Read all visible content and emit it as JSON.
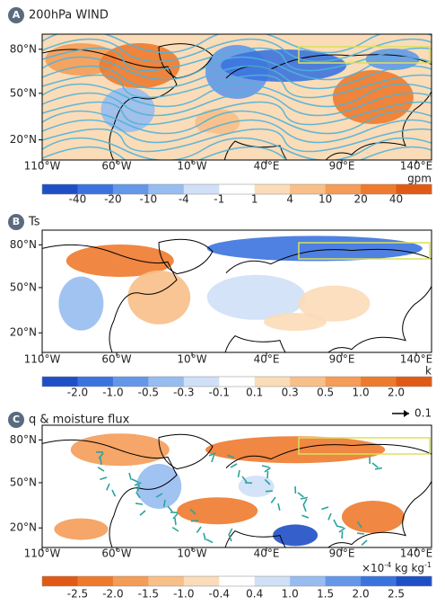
{
  "panels": [
    {
      "letter": "A",
      "title": "200hPa WIND",
      "lat_ticks": [
        "80°N",
        "50°N",
        "20°N"
      ],
      "lon_ticks": [
        "110°W",
        "60°W",
        "10°W",
        "40°E",
        "90°E",
        "140°E"
      ],
      "colorbar": {
        "labels": [
          "-40",
          "-20",
          "-10",
          "-4",
          "-1",
          "1",
          "4",
          "10",
          "20",
          "40"
        ],
        "unit": "gpm",
        "colors": [
          "#1f4fc7",
          "#3b73de",
          "#6497e8",
          "#97bdf0",
          "#cfe0f7",
          "#ffffff",
          "#fbdcb8",
          "#f8bf88",
          "#f49c58",
          "#ee7a2d",
          "#e05a15"
        ]
      }
    },
    {
      "letter": "B",
      "title": "Ts",
      "lat_ticks": [
        "80°N",
        "50°N",
        "20°N"
      ],
      "lon_ticks": [
        "110°W",
        "60°W",
        "10°W",
        "40°E",
        "90°E",
        "140°E"
      ],
      "colorbar": {
        "labels": [
          "-2.0",
          "-1.0",
          "-0.5",
          "-0.3",
          "-0.1",
          "0.1",
          "0.3",
          "0.5",
          "1.0",
          "2.0"
        ],
        "unit": "k",
        "colors": [
          "#1f4fc7",
          "#3b73de",
          "#6497e8",
          "#97bdf0",
          "#cfe0f7",
          "#ffffff",
          "#fbdcb8",
          "#f8bf88",
          "#f49c58",
          "#ee7a2d",
          "#e05a15"
        ]
      }
    },
    {
      "letter": "C",
      "title": "q & moisture flux",
      "reference_vector": "0.1",
      "lat_ticks": [
        "80°N",
        "50°N",
        "20°N"
      ],
      "lon_ticks": [
        "110°W",
        "60°W",
        "10°W",
        "40°E",
        "90°E",
        "140°E"
      ],
      "colorbar": {
        "labels": [
          "-2.5",
          "-2.0",
          "-1.5",
          "-1.0",
          "-0.4",
          "0.4",
          "1.0",
          "1.5",
          "2.0",
          "2.5"
        ],
        "unit": {
          "base": "×10",
          "exp": "-4",
          "rest": " kg kg",
          "exp2": "-1"
        },
        "colors": [
          "#e05a15",
          "#ee7a2d",
          "#f49c58",
          "#f8bf88",
          "#fbdcb8",
          "#ffffff",
          "#cfe0f7",
          "#97bdf0",
          "#6497e8",
          "#3b73de",
          "#1f4fc7"
        ]
      }
    }
  ]
}
